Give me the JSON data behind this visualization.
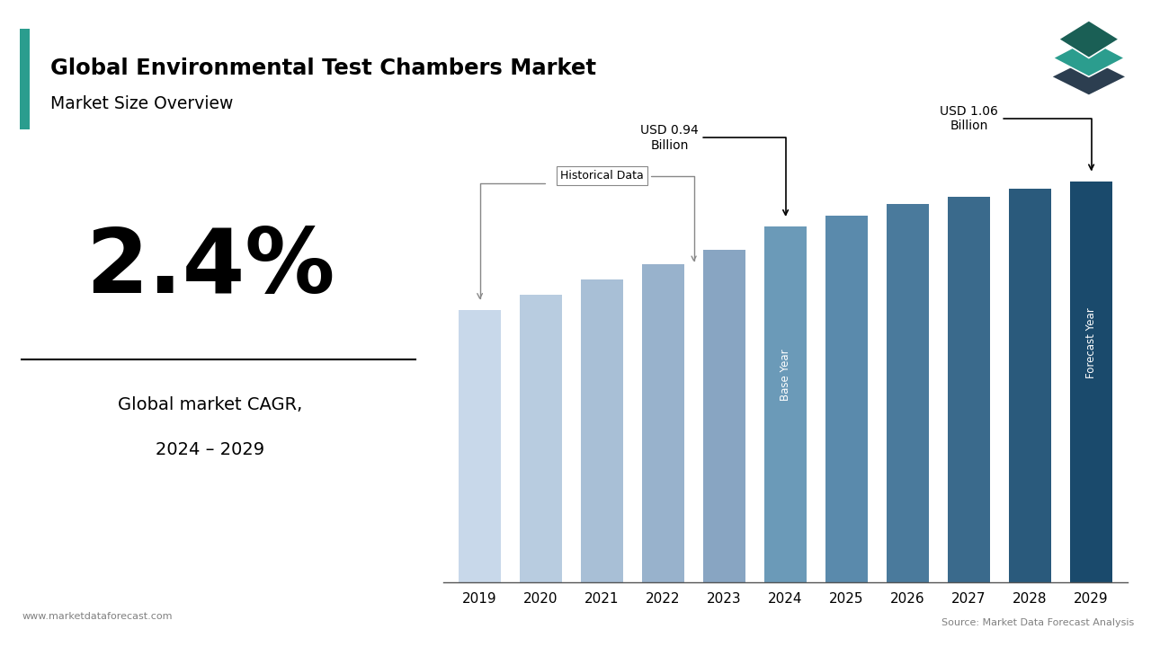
{
  "title": "Global Environmental Test Chambers Market",
  "subtitle": "Market Size Overview",
  "cagr": "2.4%",
  "cagr_label1": "Global market CAGR,",
  "cagr_label2": "2024 – 2029",
  "years": [
    2019,
    2020,
    2021,
    2022,
    2023,
    2024,
    2025,
    2026,
    2027,
    2028,
    2029
  ],
  "values": [
    0.72,
    0.76,
    0.8,
    0.84,
    0.88,
    0.94,
    0.97,
    1.0,
    1.02,
    1.04,
    1.06
  ],
  "hist_colors": [
    "#c8d8ea",
    "#b8cce0",
    "#a8bfd6",
    "#98b2cc",
    "#88a5c2"
  ],
  "base_color": "#6b9ab8",
  "forecast_colors": [
    "#5a8aac",
    "#4a7a9c",
    "#3a6a8c",
    "#2a5a7c",
    "#1a4a6c",
    "#0d3d5e"
  ],
  "accent_color": "#2b9d8e",
  "footer_left": "www.marketdataforecast.com",
  "footer_right": "Source: Market Data Forecast Analysis",
  "background_color": "#ffffff"
}
